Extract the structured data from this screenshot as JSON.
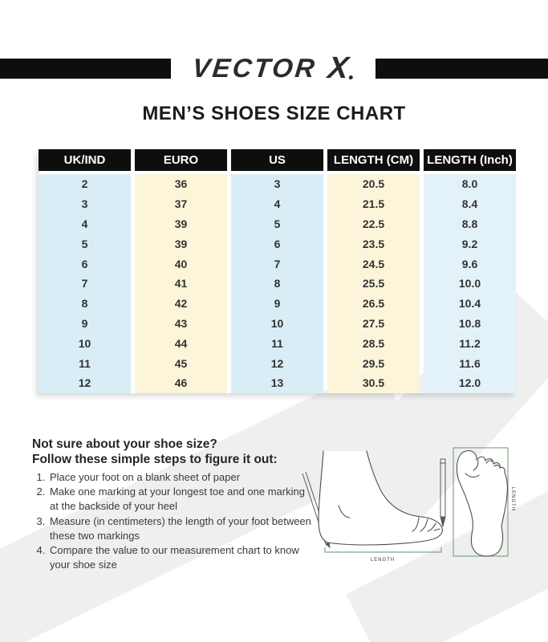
{
  "logo": {
    "word": "VECTOR",
    "x": "X"
  },
  "title": "MEN’S SHOES SIZE CHART",
  "size_table": {
    "headers": [
      "UK/IND",
      "EURO",
      "US",
      "LENGTH (CM)",
      "LENGTH (Inch)"
    ],
    "rows": [
      [
        "2",
        "36",
        "3",
        "20.5",
        "8.0"
      ],
      [
        "3",
        "37",
        "4",
        "21.5",
        "8.4"
      ],
      [
        "4",
        "39",
        "5",
        "22.5",
        "8.8"
      ],
      [
        "5",
        "39",
        "6",
        "23.5",
        "9.2"
      ],
      [
        "6",
        "40",
        "7",
        "24.5",
        "9.6"
      ],
      [
        "7",
        "41",
        "8",
        "25.5",
        "10.0"
      ],
      [
        "8",
        "42",
        "9",
        "26.5",
        "10.4"
      ],
      [
        "9",
        "43",
        "10",
        "27.5",
        "10.8"
      ],
      [
        "10",
        "44",
        "11",
        "28.5",
        "11.2"
      ],
      [
        "11",
        "45",
        "12",
        "29.5",
        "11.6"
      ],
      [
        "12",
        "46",
        "13",
        "30.5",
        "12.0"
      ]
    ],
    "column_colors": [
      "#d9edf7",
      "#fcf5da",
      "#d9edf7",
      "#fcf5da",
      "#e3f1f9"
    ]
  },
  "guide": {
    "question": "Not sure about your shoe size?",
    "subtitle": "Follow these simple steps to figure it out:",
    "steps": [
      "Place your foot on a blank sheet of paper",
      "Make one marking at your longest toe and one marking at the backside of your heel",
      "Measure (in centimeters) the length of your foot between these two markings",
      "Compare the value to our measurement chart to know your shoe size"
    ]
  },
  "illustration": {
    "side_length_label": "LENGTH",
    "sole_length_label": "LENGTH"
  },
  "colors": {
    "bar_black": "#0e0e0e",
    "logo_gray": "#2c2c2c",
    "watermark_gray": "#efefef",
    "dimension_green": "#7fa77f",
    "column_blue": "#d9edf7",
    "column_cream": "#fcf5da"
  }
}
